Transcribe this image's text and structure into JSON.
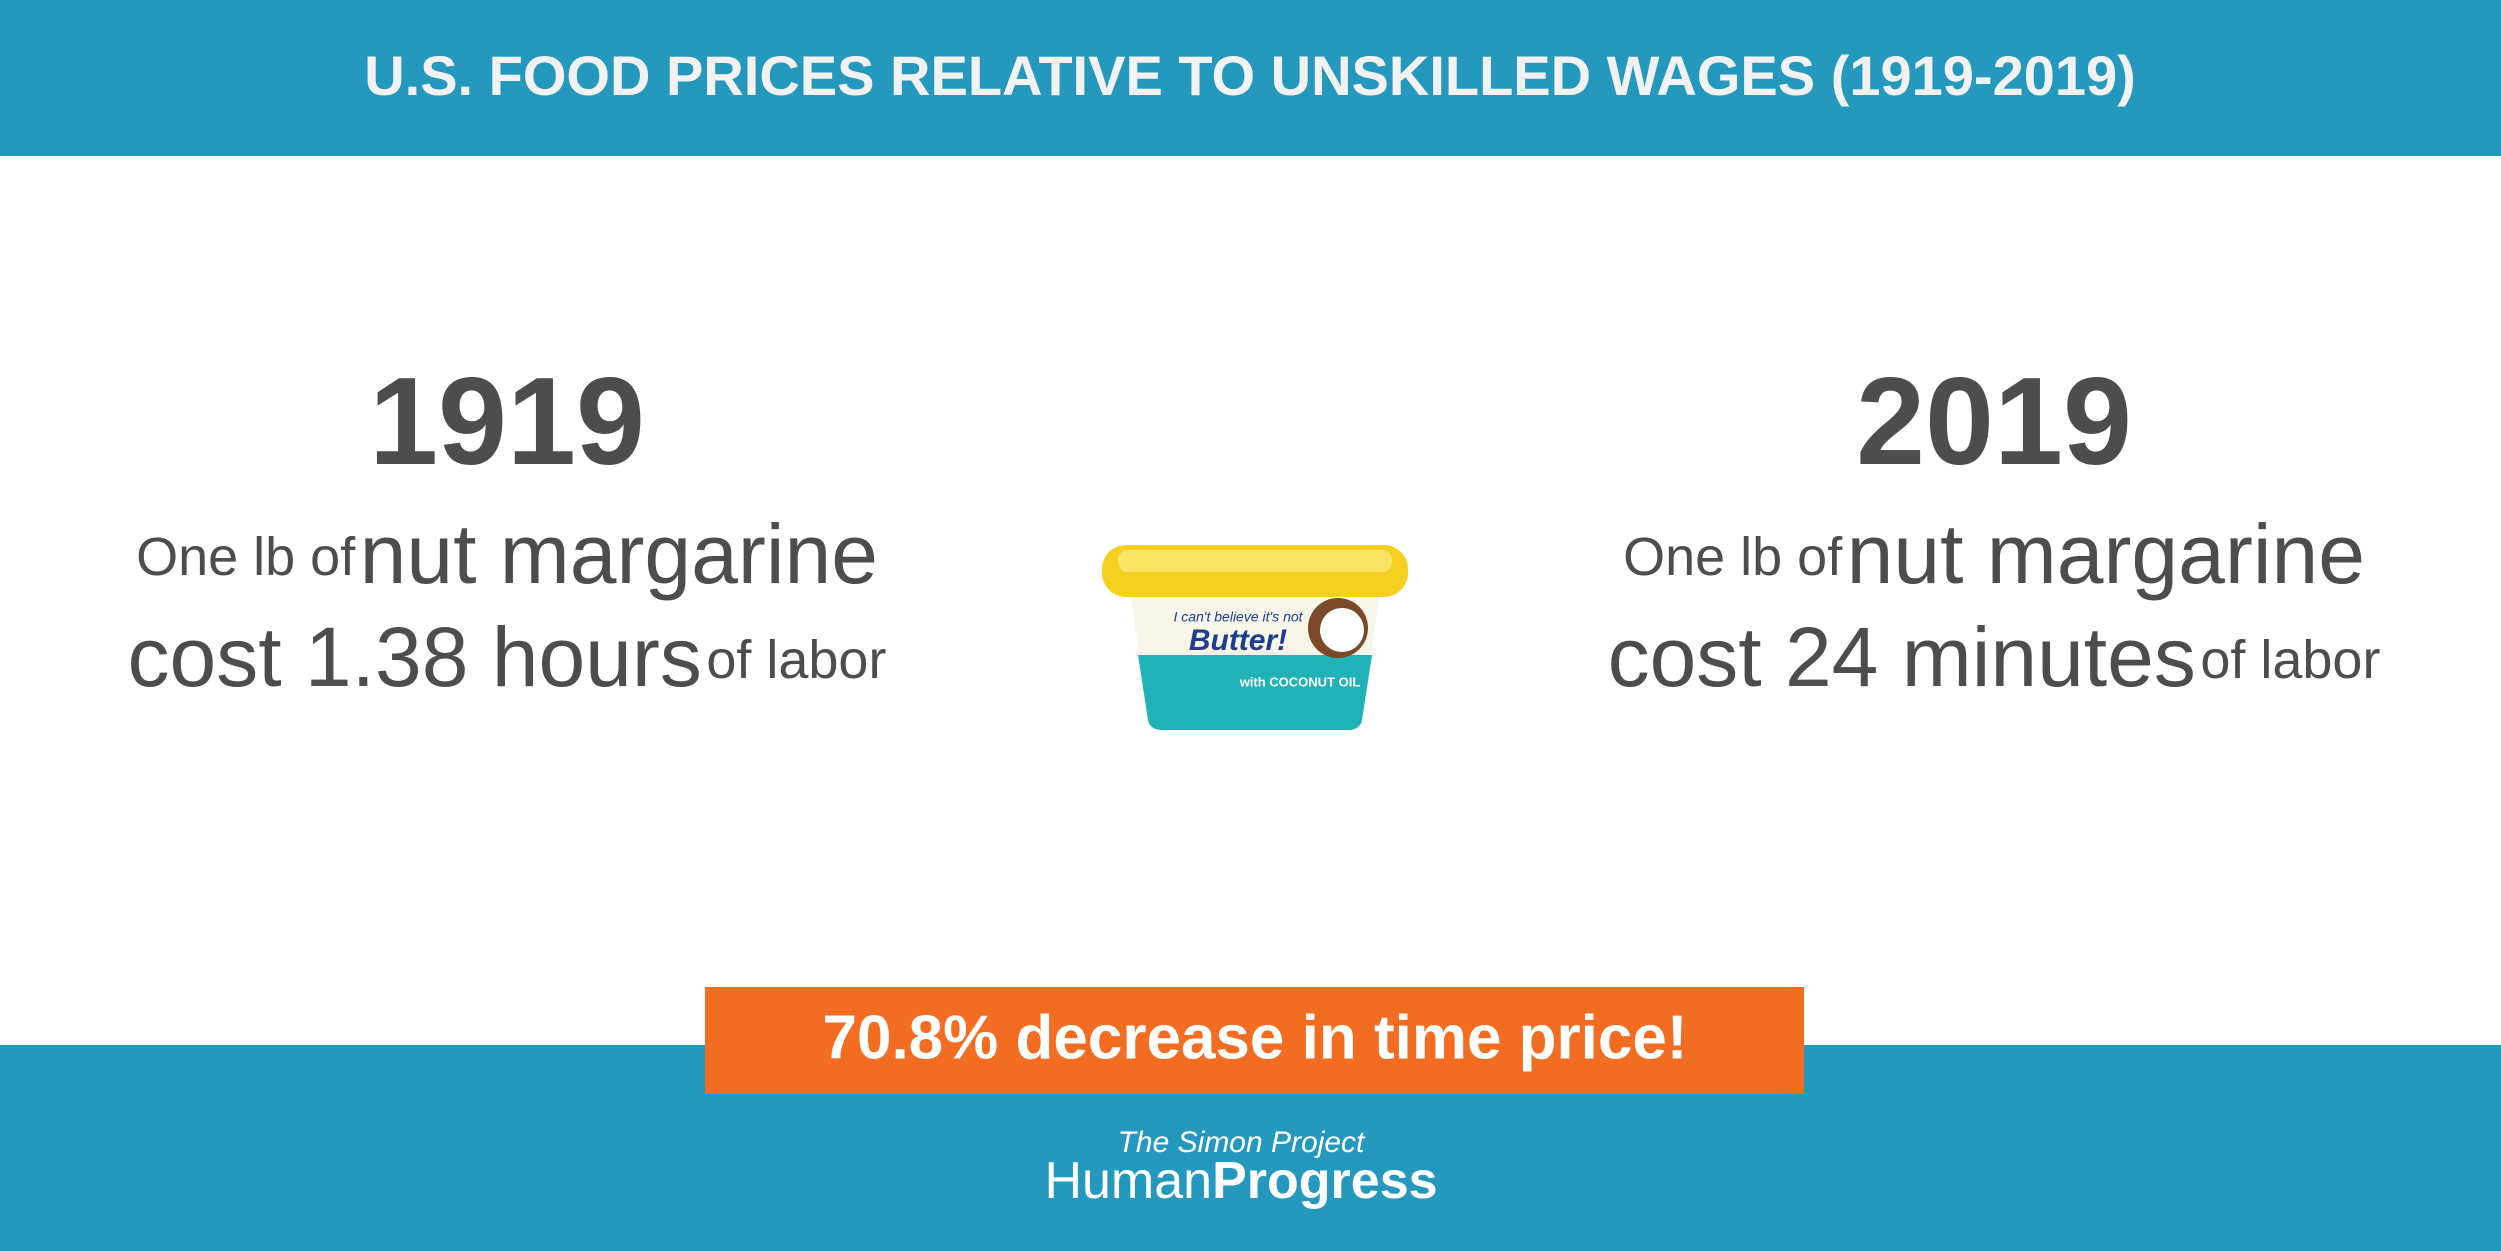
{
  "header": {
    "title": "U.S. FOOD PRICES RELATIVE TO UNSKILLED WAGES (1919-2019)"
  },
  "left": {
    "year": "1919",
    "line1": [
      "One lb of",
      "nut margarine"
    ],
    "line2": [
      "cost 1.38 hours",
      "of labor"
    ]
  },
  "right": {
    "year": "2019",
    "line1": [
      "One lb of",
      "nut margarine"
    ],
    "line2": [
      "cost 24 minutes",
      "of labor"
    ]
  },
  "product": {
    "tagline": "I can't believe it's not",
    "brand": "Butter!",
    "flavor": "with COCONUT OIL"
  },
  "callout": "70.8% decrease in time price!",
  "footer": {
    "tagline": "The Simon Project",
    "brand": [
      "Human",
      "Progress"
    ]
  }
}
